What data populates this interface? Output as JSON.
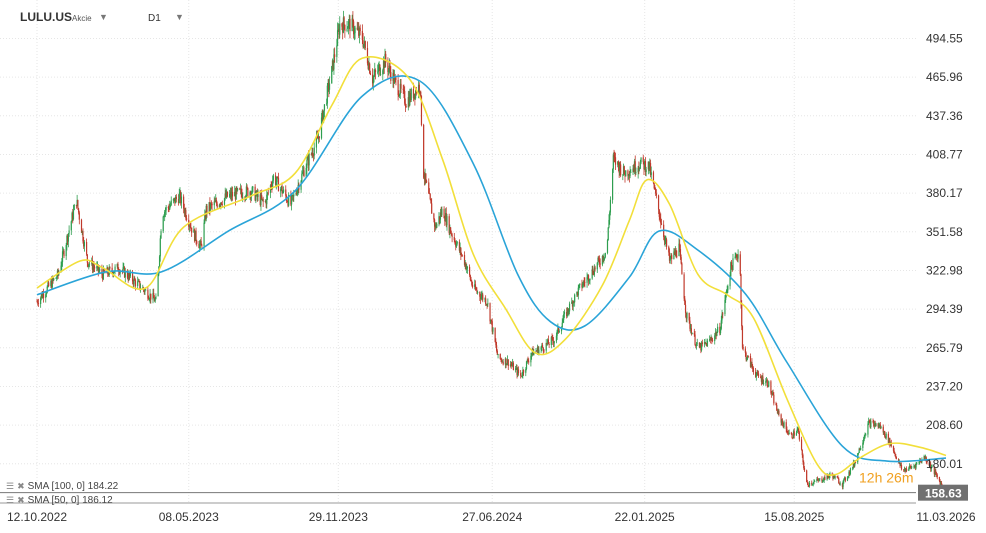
{
  "header": {
    "symbol": "LULU.US",
    "asset_type": "Akcie",
    "timeframe": "D1",
    "symbol_dropdown_icon": "caret-down-icon",
    "timeframe_dropdown_icon": "caret-down-icon"
  },
  "indicators": [
    {
      "label": "SMA [100, 0] 184.22",
      "color": "#2aa4d8"
    },
    {
      "label": "SMA [50, 0] 186.12",
      "color": "#f2df3a"
    }
  ],
  "countdown": "12h 26m",
  "colors": {
    "up": "#2e9e4f",
    "down": "#c0392b",
    "sma100": "#2aa4d8",
    "sma50": "#f2df3a",
    "price_label_bg": "#707070",
    "countdown": "#f0a020"
  },
  "chart_data": {
    "type": "candlestick",
    "title": "",
    "x_ticks": [
      "12.10.2022",
      "08.05.2023",
      "29.11.2023",
      "27.06.2024",
      "22.01.2025",
      "15.08.2025",
      "11.03.2026"
    ],
    "y_ticks": [
      494.55,
      465.96,
      437.36,
      408.77,
      380.17,
      351.58,
      322.98,
      294.39,
      265.79,
      237.2,
      208.6,
      180.01
    ],
    "ylim": [
      151.0,
      523.0
    ],
    "grid": true,
    "current_price": 158.63,
    "close_path": [
      [
        "2022-10-12",
        300
      ],
      [
        "2022-11-10",
        320
      ],
      [
        "2022-12-05",
        375
      ],
      [
        "2022-12-20",
        330
      ],
      [
        "2023-01-10",
        320
      ],
      [
        "2023-02-01",
        325
      ],
      [
        "2023-03-01",
        312
      ],
      [
        "2023-03-25",
        300
      ],
      [
        "2023-04-01",
        365
      ],
      [
        "2023-04-25",
        378
      ],
      [
        "2023-05-15",
        350
      ],
      [
        "2023-05-25",
        340
      ],
      [
        "2023-06-01",
        368
      ],
      [
        "2023-07-01",
        378
      ],
      [
        "2023-08-01",
        382
      ],
      [
        "2023-08-20",
        372
      ],
      [
        "2023-09-01",
        392
      ],
      [
        "2023-09-25",
        372
      ],
      [
        "2023-10-15",
        400
      ],
      [
        "2023-11-01",
        420
      ],
      [
        "2023-11-20",
        470
      ],
      [
        "2023-12-01",
        505
      ],
      [
        "2023-12-15",
        505
      ],
      [
        "2024-01-01",
        495
      ],
      [
        "2024-01-15",
        465
      ],
      [
        "2024-02-01",
        478
      ],
      [
        "2024-02-15",
        462
      ],
      [
        "2024-03-01",
        448
      ],
      [
        "2024-03-20",
        460
      ],
      [
        "2024-03-25",
        395
      ],
      [
        "2024-04-10",
        355
      ],
      [
        "2024-04-20",
        368
      ],
      [
        "2024-05-01",
        352
      ],
      [
        "2024-05-20",
        330
      ],
      [
        "2024-06-01",
        310
      ],
      [
        "2024-06-20",
        300
      ],
      [
        "2024-07-05",
        258
      ],
      [
        "2024-07-20",
        255
      ],
      [
        "2024-08-05",
        245
      ],
      [
        "2024-08-20",
        262
      ],
      [
        "2024-09-01",
        265
      ],
      [
        "2024-09-20",
        272
      ],
      [
        "2024-10-05",
        290
      ],
      [
        "2024-10-25",
        310
      ],
      [
        "2024-11-15",
        325
      ],
      [
        "2024-12-01",
        338
      ],
      [
        "2024-12-10",
        405
      ],
      [
        "2024-12-25",
        395
      ],
      [
        "2025-01-15",
        402
      ],
      [
        "2025-01-28",
        400
      ],
      [
        "2025-02-10",
        368
      ],
      [
        "2025-02-25",
        330
      ],
      [
        "2025-03-10",
        340
      ],
      [
        "2025-03-20",
        290
      ],
      [
        "2025-04-05",
        265
      ],
      [
        "2025-04-20",
        270
      ],
      [
        "2025-05-05",
        280
      ],
      [
        "2025-05-20",
        325
      ],
      [
        "2025-06-01",
        338
      ],
      [
        "2025-06-05",
        265
      ],
      [
        "2025-06-25",
        245
      ],
      [
        "2025-07-10",
        240
      ],
      [
        "2025-07-25",
        215
      ],
      [
        "2025-08-10",
        200
      ],
      [
        "2025-08-20",
        205
      ],
      [
        "2025-09-01",
        165
      ],
      [
        "2025-09-20",
        168
      ],
      [
        "2025-10-05",
        172
      ],
      [
        "2025-10-20",
        165
      ],
      [
        "2025-11-05",
        180
      ],
      [
        "2025-11-25",
        210
      ],
      [
        "2025-12-10",
        208
      ],
      [
        "2025-12-25",
        195
      ],
      [
        "2026-01-10",
        175
      ],
      [
        "2026-01-25",
        178
      ],
      [
        "2026-02-10",
        185
      ],
      [
        "2026-02-25",
        172
      ],
      [
        "2026-03-11",
        158.63
      ]
    ],
    "sma100_path": [
      [
        "2022-10-12",
        305
      ],
      [
        "2023-01-15",
        322
      ],
      [
        "2023-04-01",
        322
      ],
      [
        "2023-07-01",
        352
      ],
      [
        "2023-10-01",
        382
      ],
      [
        "2024-01-01",
        452
      ],
      [
        "2024-03-20",
        463
      ],
      [
        "2024-06-01",
        402
      ],
      [
        "2024-08-01",
        320
      ],
      [
        "2024-09-15",
        285
      ],
      [
        "2024-11-01",
        282
      ],
      [
        "2025-01-01",
        318
      ],
      [
        "2025-02-10",
        352
      ],
      [
        "2025-04-05",
        338
      ],
      [
        "2025-06-10",
        305
      ],
      [
        "2025-08-05",
        255
      ],
      [
        "2025-10-20",
        193
      ],
      [
        "2025-12-20",
        182
      ],
      [
        "2026-03-11",
        184.22
      ]
    ],
    "sma50_path": [
      [
        "2022-10-12",
        310
      ],
      [
        "2022-12-10",
        330
      ],
      [
        "2023-01-10",
        325
      ],
      [
        "2023-03-10",
        310
      ],
      [
        "2023-05-01",
        355
      ],
      [
        "2023-08-01",
        378
      ],
      [
        "2023-10-01",
        395
      ],
      [
        "2023-11-20",
        445
      ],
      [
        "2024-01-01",
        480
      ],
      [
        "2024-03-05",
        465
      ],
      [
        "2024-04-20",
        405
      ],
      [
        "2024-06-01",
        335
      ],
      [
        "2024-07-15",
        295
      ],
      [
        "2024-08-25",
        262
      ],
      [
        "2024-10-05",
        272
      ],
      [
        "2024-11-25",
        312
      ],
      [
        "2025-01-01",
        360
      ],
      [
        "2025-01-25",
        390
      ],
      [
        "2025-02-25",
        372
      ],
      [
        "2025-04-05",
        320
      ],
      [
        "2025-05-15",
        305
      ],
      [
        "2025-06-20",
        288
      ],
      [
        "2025-08-05",
        228
      ],
      [
        "2025-09-15",
        180
      ],
      [
        "2025-10-10",
        172
      ],
      [
        "2025-11-15",
        185
      ],
      [
        "2025-12-25",
        195
      ],
      [
        "2026-02-05",
        192
      ],
      [
        "2026-03-11",
        186.12
      ]
    ]
  }
}
